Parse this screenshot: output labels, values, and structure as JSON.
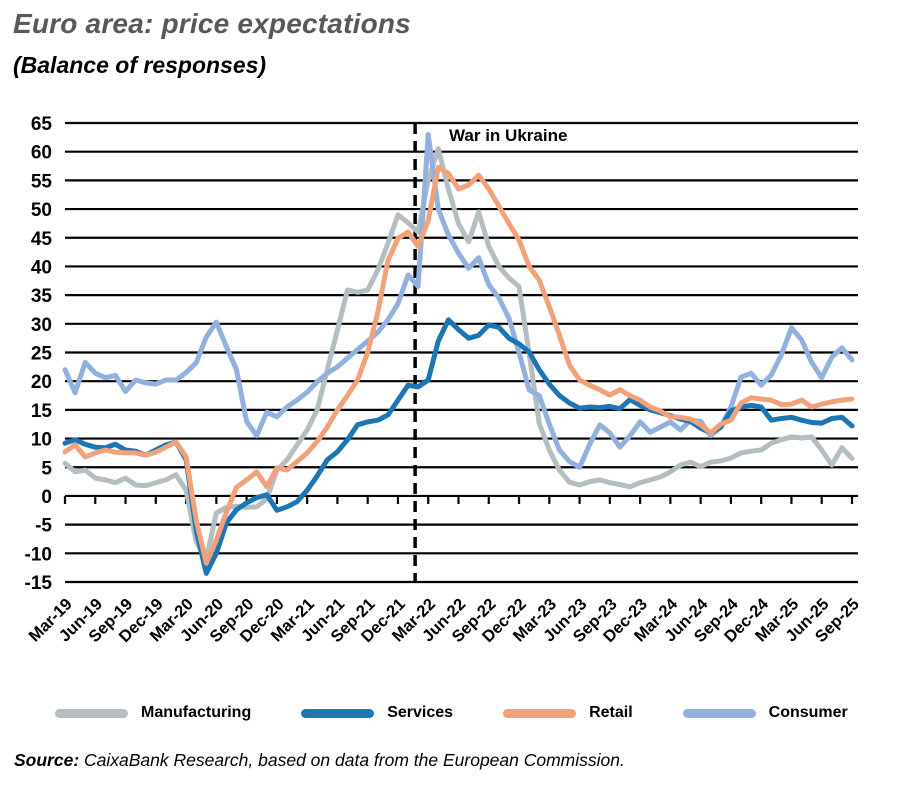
{
  "header": {
    "title": "Euro area: price expectations",
    "subtitle": "(Balance of responses)"
  },
  "annotation": {
    "war_label": "War in Ukraine"
  },
  "legend": [
    {
      "label": "Manufacturing",
      "color": "#b4bdc2"
    },
    {
      "label": "Services",
      "color": "#1d76b4"
    },
    {
      "label": "Retail",
      "color": "#f1a27b"
    },
    {
      "label": "Consumer",
      "color": "#93b1de"
    }
  ],
  "source": {
    "prefix": "Source:",
    "text": " CaixaBank Research, based on data from the European Commission."
  },
  "chart_data": {
    "type": "line",
    "title": "Euro area: price expectations",
    "subtitle": "(Balance of responses)",
    "x_frequency": "monthly",
    "x_start": "Mar-19",
    "x_end": "Sep-25",
    "x_tick_labels": [
      "Mar-19",
      "Jun-19",
      "Sep-19",
      "Dec-19",
      "Mar-20",
      "Jun-20",
      "Sep-20",
      "Dec-20",
      "Mar-21",
      "Jun-21",
      "Sep-21",
      "Dec-21",
      "Mar-22",
      "Jun-22",
      "Sep-22",
      "Dec-22",
      "Mar-23",
      "Jun-23",
      "Sep-23",
      "Dec-23",
      "Mar-24",
      "Jun-24",
      "Sep-24",
      "Dec-24",
      "Mar-25",
      "Jun-25",
      "Sep-25"
    ],
    "ylim": [
      -15,
      65
    ],
    "ytick_step": 5,
    "grid": "horizontal-solid-black",
    "legend_position": "bottom",
    "annotation": {
      "label": "War in Ukraine",
      "x_month_index": 34.7,
      "style": "vertical-dashed-black"
    },
    "series": [
      {
        "name": "Manufacturing",
        "color": "#b4bdc2",
        "values": [
          5.7,
          4.2,
          4.5,
          3.1,
          2.8,
          2.3,
          3.1,
          1.9,
          1.8,
          2.3,
          2.8,
          3.7,
          1.0,
          -8.0,
          -11.0,
          -3.0,
          -2.0,
          -1.8,
          -2.0,
          -1.9,
          -0.5,
          4.5,
          6.3,
          8.9,
          11.5,
          15.0,
          22.0,
          28.9,
          35.9,
          35.5,
          35.9,
          39.4,
          44.0,
          49.0,
          47.6,
          46.0,
          55.0,
          60.5,
          53.5,
          47.5,
          44.3,
          49.5,
          43.5,
          40.0,
          38.0,
          36.5,
          24.9,
          12.7,
          8.0,
          4.5,
          2.4,
          1.9,
          2.5,
          2.8,
          2.3,
          2.0,
          1.6,
          2.3,
          2.8,
          3.3,
          4.2,
          5.4,
          5.9,
          5.1,
          5.9,
          6.1,
          6.6,
          7.5,
          7.8,
          8.0,
          9.2,
          9.8,
          10.3,
          10.1,
          10.3,
          8.0,
          5.4,
          8.4,
          6.5
        ]
      },
      {
        "name": "Services",
        "color": "#1d76b4",
        "values": [
          9.2,
          9.8,
          9.0,
          8.5,
          8.4,
          9.0,
          8.0,
          7.8,
          7.1,
          8.0,
          8.9,
          9.4,
          6.3,
          -6.0,
          -13.5,
          -10.0,
          -4.7,
          -2.4,
          -1.2,
          -0.3,
          0.2,
          -2.5,
          -1.9,
          -1.0,
          1.0,
          3.5,
          6.3,
          7.7,
          9.8,
          12.4,
          12.9,
          13.2,
          14.1,
          16.7,
          19.3,
          19.0,
          20.2,
          27.0,
          30.7,
          29.0,
          27.5,
          28.0,
          29.8,
          29.4,
          27.5,
          26.5,
          25.1,
          22.0,
          19.5,
          17.5,
          16.2,
          15.3,
          15.5,
          15.4,
          15.6,
          15.2,
          16.8,
          15.8,
          15.0,
          14.5,
          14.0,
          13.4,
          13.0,
          11.8,
          11.0,
          12.0,
          14.8,
          15.5,
          15.8,
          15.5,
          13.2,
          13.5,
          13.7,
          13.2,
          12.8,
          12.7,
          13.5,
          13.7,
          12.2
        ]
      },
      {
        "name": "Retail",
        "color": "#f1a27b",
        "values": [
          7.7,
          8.9,
          6.8,
          7.5,
          8.0,
          7.6,
          7.5,
          7.5,
          7.1,
          7.6,
          8.5,
          9.4,
          6.8,
          -4.2,
          -11.7,
          -7.7,
          -2.8,
          1.5,
          2.8,
          4.2,
          1.6,
          4.9,
          4.5,
          6.0,
          7.5,
          9.5,
          12.0,
          15.0,
          17.5,
          20.2,
          25.0,
          32.0,
          41.0,
          44.9,
          46.0,
          43.5,
          48.0,
          57.3,
          56.2,
          53.5,
          54.2,
          55.9,
          53.5,
          50.5,
          47.5,
          44.6,
          40.0,
          37.6,
          33.0,
          28.0,
          22.8,
          20.2,
          19.3,
          18.5,
          17.6,
          18.5,
          17.5,
          16.7,
          15.5,
          14.8,
          13.8,
          13.7,
          13.4,
          12.4,
          11.0,
          12.5,
          13.2,
          16.2,
          17.1,
          16.9,
          16.7,
          15.9,
          16.0,
          16.7,
          15.5,
          16.0,
          16.4,
          16.7,
          16.9
        ]
      },
      {
        "name": "Consumer",
        "color": "#93b1de",
        "values": [
          22.0,
          18.0,
          23.3,
          21.4,
          20.6,
          21.0,
          18.2,
          20.2,
          19.7,
          19.5,
          20.2,
          20.2,
          21.5,
          23.2,
          27.7,
          30.3,
          26.0,
          22.0,
          13.0,
          10.5,
          14.6,
          13.8,
          15.5,
          16.7,
          18.1,
          19.9,
          21.4,
          22.5,
          24.0,
          25.5,
          27.0,
          28.5,
          30.7,
          33.5,
          38.5,
          36.5,
          63.0,
          50.0,
          45.5,
          42.3,
          39.7,
          41.5,
          36.8,
          34.5,
          31.0,
          25.0,
          18.5,
          17.5,
          12.5,
          8.0,
          6.0,
          5.0,
          9.0,
          12.4,
          11.0,
          8.5,
          10.5,
          12.9,
          11.1,
          12.0,
          12.9,
          11.5,
          13.2,
          13.0,
          10.5,
          12.0,
          15.5,
          20.7,
          21.4,
          19.3,
          21.1,
          24.6,
          29.3,
          27.2,
          23.3,
          20.6,
          24.2,
          25.8,
          23.7
        ]
      }
    ]
  }
}
